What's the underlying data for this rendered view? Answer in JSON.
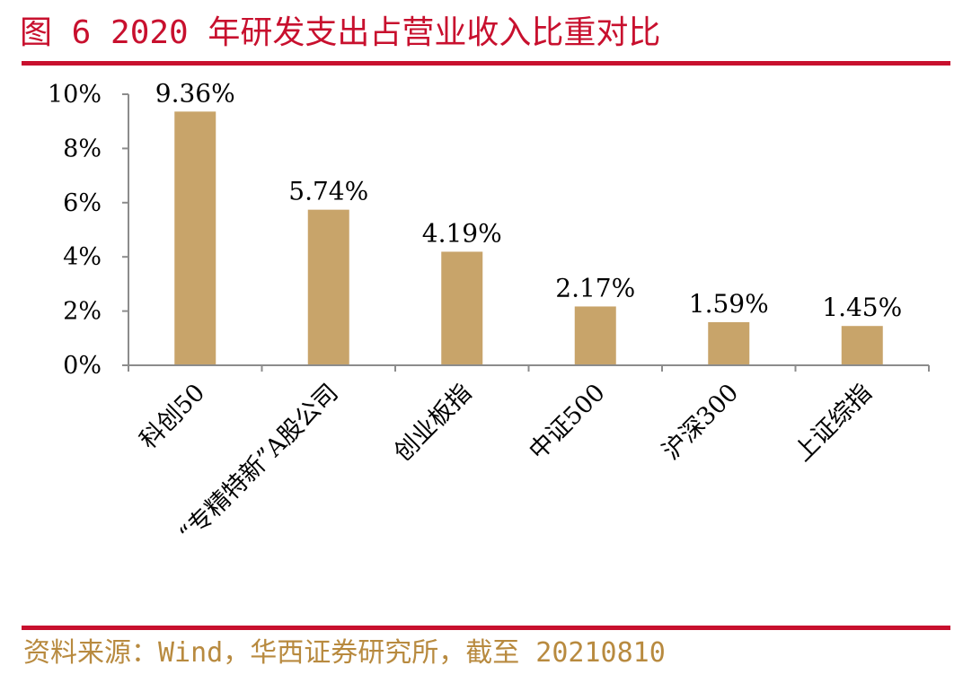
{
  "figure": {
    "title": "图 6  2020 年研发支出占营业收入比重对比",
    "source": "资料来源：Wind，华西证券研究所，截至 20210810"
  },
  "colors": {
    "accent": "#c8102e",
    "bar": "#c8a46a",
    "axis": "#8c8c8c",
    "source": "#b88a3f"
  },
  "chart_data": {
    "type": "bar",
    "categories": [
      "科创50",
      "“专精特新”A股公司",
      "创业板指",
      "中证500",
      "沪深300",
      "上证综指"
    ],
    "values": [
      9.36,
      5.74,
      4.19,
      2.17,
      1.59,
      1.45
    ],
    "value_labels": [
      "9.36%",
      "5.74%",
      "4.19%",
      "2.17%",
      "1.59%",
      "1.45%"
    ],
    "y_ticks": [
      0,
      2,
      4,
      6,
      8,
      10
    ],
    "y_tick_labels": [
      "0%",
      "2%",
      "4%",
      "6%",
      "8%",
      "10%"
    ],
    "ylim": [
      0,
      10
    ],
    "grid": false
  }
}
